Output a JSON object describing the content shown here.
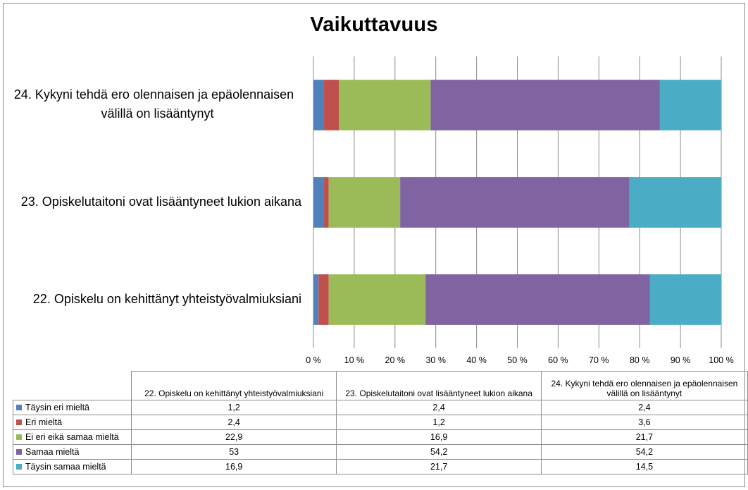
{
  "chart_data": {
    "type": "bar",
    "orientation": "horizontal",
    "stacked": "percent",
    "title": "Vaikuttavuus",
    "categories": [
      "22. Opiskelu on kehittänyt yhteistyövalmiuksiani",
      "23. Opiskelutaitoni ovat lisääntyneet lukion aikana",
      "24. Kykyni tehdä ero olennaisen ja epäolennaisen välillä on lisääntynyt"
    ],
    "category_display": [
      [
        "22. Opiskelu on kehittänyt yhteistyövalmiuksiani"
      ],
      [
        "23. Opiskelutaitoni ovat lisääntyneet lukion aikana"
      ],
      [
        "24. Kykyni tehdä ero olennaisen ja epäolennaisen",
        "välillä on lisääntynyt"
      ]
    ],
    "series": [
      {
        "name": "Täysin eri mieltä",
        "color": "#4f81bd",
        "values": [
          1.2,
          2.4,
          2.4
        ],
        "labels": [
          "1,2",
          "2,4",
          "2,4"
        ]
      },
      {
        "name": "Eri mieltä",
        "color": "#c0504d",
        "values": [
          2.4,
          1.2,
          3.6
        ],
        "labels": [
          "2,4",
          "1,2",
          "3,6"
        ]
      },
      {
        "name": "Ei eri eikä samaa mieltä",
        "color": "#9bbb59",
        "values": [
          22.9,
          16.9,
          21.7
        ],
        "labels": [
          "22,9",
          "16,9",
          "21,7"
        ]
      },
      {
        "name": "Samaa mieltä",
        "color": "#8064a2",
        "values": [
          53,
          54.2,
          54.2
        ],
        "labels": [
          "53",
          "54,2",
          "54,2"
        ]
      },
      {
        "name": "Täysin samaa mieltä",
        "color": "#4bacc6",
        "values": [
          16.9,
          21.7,
          14.5
        ],
        "labels": [
          "16,9",
          "21,7",
          "14,5"
        ]
      }
    ],
    "xlim": [
      0,
      100
    ],
    "x_ticks": [
      "0 %",
      "10 %",
      "20 %",
      "30 %",
      "40 %",
      "50 %",
      "60 %",
      "70 %",
      "80 %",
      "90 %",
      "100 %"
    ],
    "grid": true,
    "data_table": true
  }
}
